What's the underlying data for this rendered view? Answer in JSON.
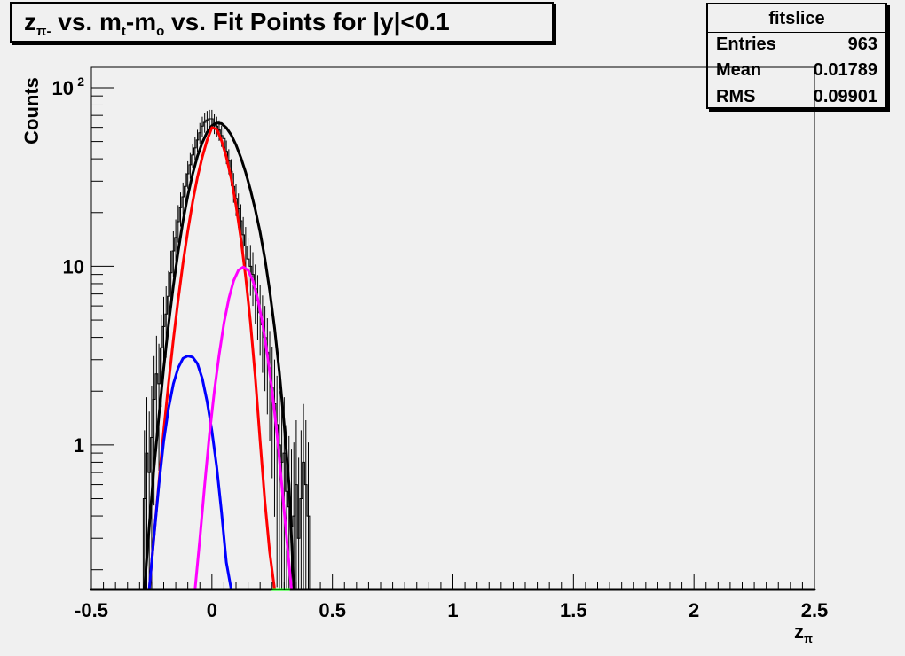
{
  "title": {
    "sub_1": "π-",
    "seg_2": " vs. m",
    "sub_3": "t",
    "seg_4": "-m",
    "sub_5": "o",
    "seg_6": " vs. Fit Points for |y|<0.1"
  },
  "title_z": "z",
  "stats": {
    "name": "fitslice",
    "rows": [
      {
        "label": "Entries",
        "value": "963"
      },
      {
        "label": "Mean",
        "value": "0.01789"
      },
      {
        "label": "RMS",
        "value": "0.09901"
      }
    ]
  },
  "chart_data": {
    "type": "line",
    "title": "zπ- vs. mt-mo vs. Fit Points for |y|<0.1",
    "xlabel": "zπ",
    "ylabel": "Counts",
    "xlim": [
      -0.5,
      2.5
    ],
    "ylim": [
      0.155,
      130
    ],
    "yscale": "log",
    "grid": false,
    "x_ticks": [
      "-0.5",
      "0",
      "0.5",
      "1",
      "1.5",
      "2",
      "2.5"
    ],
    "y_ticks": [
      {
        "label": "1",
        "value": 1
      },
      {
        "label": "10",
        "value": 10
      },
      {
        "label": "10",
        "sup": "2",
        "value": 100
      }
    ],
    "histogram": {
      "x": [
        -0.28,
        -0.27,
        -0.26,
        -0.25,
        -0.24,
        -0.23,
        -0.22,
        -0.21,
        -0.2,
        -0.19,
        -0.18,
        -0.17,
        -0.16,
        -0.15,
        -0.14,
        -0.13,
        -0.12,
        -0.11,
        -0.1,
        -0.09,
        -0.08,
        -0.07,
        -0.06,
        -0.05,
        -0.04,
        -0.03,
        -0.02,
        -0.01,
        0,
        0.01,
        0.02,
        0.03,
        0.04,
        0.05,
        0.06,
        0.07,
        0.08,
        0.09,
        0.1,
        0.11,
        0.12,
        0.13,
        0.14,
        0.15,
        0.16,
        0.17,
        0.18,
        0.19,
        0.2,
        0.21,
        0.22,
        0.23,
        0.24,
        0.25,
        0.26,
        0.27,
        0.28,
        0.29,
        0.3,
        0.31,
        0.32,
        0.33,
        0.34,
        0.35,
        0.36,
        0.37,
        0.38,
        0.39,
        0.4
      ],
      "values": [
        0.5,
        0.9,
        0.7,
        1.1,
        1.8,
        2.5,
        2.2,
        3.5,
        4.6,
        5.4,
        6.8,
        9.2,
        12.2,
        14.5,
        17.8,
        21.3,
        24.5,
        28,
        33,
        37,
        42,
        46,
        51,
        56,
        61,
        64,
        66,
        67,
        67,
        63,
        61,
        58,
        54,
        52,
        44,
        39,
        34,
        28,
        24,
        21,
        18,
        15,
        13,
        11,
        10,
        9,
        7.5,
        6.4,
        5.5,
        4.7,
        4,
        3.3,
        2.7,
        2.1,
        1.7,
        1.3,
        1,
        0.8,
        0.9,
        0.55,
        0.45,
        0.35,
        0.4,
        0.6,
        0.3,
        0.5,
        0.8,
        0.6,
        0.4
      ],
      "color": "#000000"
    },
    "series": [
      {
        "x": [
          -0.28,
          -0.26,
          -0.24,
          -0.22,
          -0.2,
          -0.18,
          -0.16,
          -0.14,
          -0.12,
          -0.1,
          -0.08,
          -0.06,
          -0.04,
          -0.02,
          0,
          0.02,
          0.04,
          0.06,
          0.08,
          0.1,
          0.12,
          0.14,
          0.16,
          0.18,
          0.2,
          0.22,
          0.24,
          0.26,
          0.28,
          0.3,
          0.32,
          0.34
        ],
        "values": [
          0.155,
          0.35,
          0.75,
          1.45,
          2.7,
          4.7,
          7.8,
          12.1,
          17.9,
          24.9,
          32.9,
          41.3,
          49.4,
          56.4,
          61.3,
          63.6,
          63,
          59.7,
          54.4,
          47.8,
          40.7,
          33.5,
          26.8,
          20.8,
          15.5,
          11,
          7.3,
          4.5,
          2.55,
          1.3,
          0.6,
          0.155
        ],
        "color": "#000000"
      },
      {
        "x": [
          -0.26,
          -0.24,
          -0.22,
          -0.2,
          -0.18,
          -0.16,
          -0.14,
          -0.12,
          -0.1,
          -0.08,
          -0.06,
          -0.04,
          -0.02,
          0,
          0.02,
          0.04,
          0.06,
          0.08,
          0.1,
          0.12,
          0.14,
          0.16,
          0.18,
          0.2,
          0.22,
          0.24,
          0.26,
          0.27
        ],
        "values": [
          0.155,
          0.31,
          0.62,
          1.2,
          2.2,
          3.9,
          6.5,
          10.4,
          15.8,
          22.9,
          31.5,
          41,
          50.8,
          59.8,
          58.7,
          50.5,
          40.9,
          31,
          21.9,
          14.4,
          8.7,
          4.85,
          2.4,
          1.05,
          0.48,
          0.25,
          0.155,
          0.155
        ],
        "color": "#ff0000"
      },
      {
        "x": [
          -0.26,
          -0.24,
          -0.22,
          -0.2,
          -0.18,
          -0.16,
          -0.14,
          -0.12,
          -0.1,
          -0.08,
          -0.06,
          -0.04,
          -0.02,
          0,
          0.02,
          0.04,
          0.06,
          0.08,
          0.1
        ],
        "values": [
          0.155,
          0.31,
          0.6,
          1.05,
          1.6,
          2.2,
          2.7,
          3.05,
          3.15,
          3.1,
          2.85,
          2.35,
          1.75,
          1.2,
          0.75,
          0.42,
          0.22,
          0.155,
          0.155
        ],
        "color": "#0000ff"
      },
      {
        "x": [
          -0.18,
          -0.1,
          -0.07,
          -0.05,
          -0.03,
          -0.01,
          0.01,
          0.03,
          0.05,
          0.07,
          0.09,
          0.11,
          0.13,
          0.15,
          0.17,
          0.19,
          0.21,
          0.23,
          0.25,
          0.27,
          0.29,
          0.31,
          0.33,
          0.34
        ],
        "values": [
          0.155,
          0.155,
          0.155,
          0.3,
          0.6,
          1.15,
          2,
          3.2,
          4.8,
          6.6,
          8.3,
          9.5,
          9.9,
          9.5,
          8.3,
          6.6,
          4.8,
          3.2,
          2,
          1.15,
          0.6,
          0.3,
          0.155,
          0.155
        ],
        "color": "#ff00ff"
      },
      {
        "x": [
          -0.5,
          2.5
        ],
        "values": [
          0.155,
          0.155
        ],
        "color": "#000000"
      },
      {
        "x": [
          0.25,
          0.32
        ],
        "values": [
          0.155,
          0.155
        ],
        "color": "#00ff00"
      }
    ]
  }
}
